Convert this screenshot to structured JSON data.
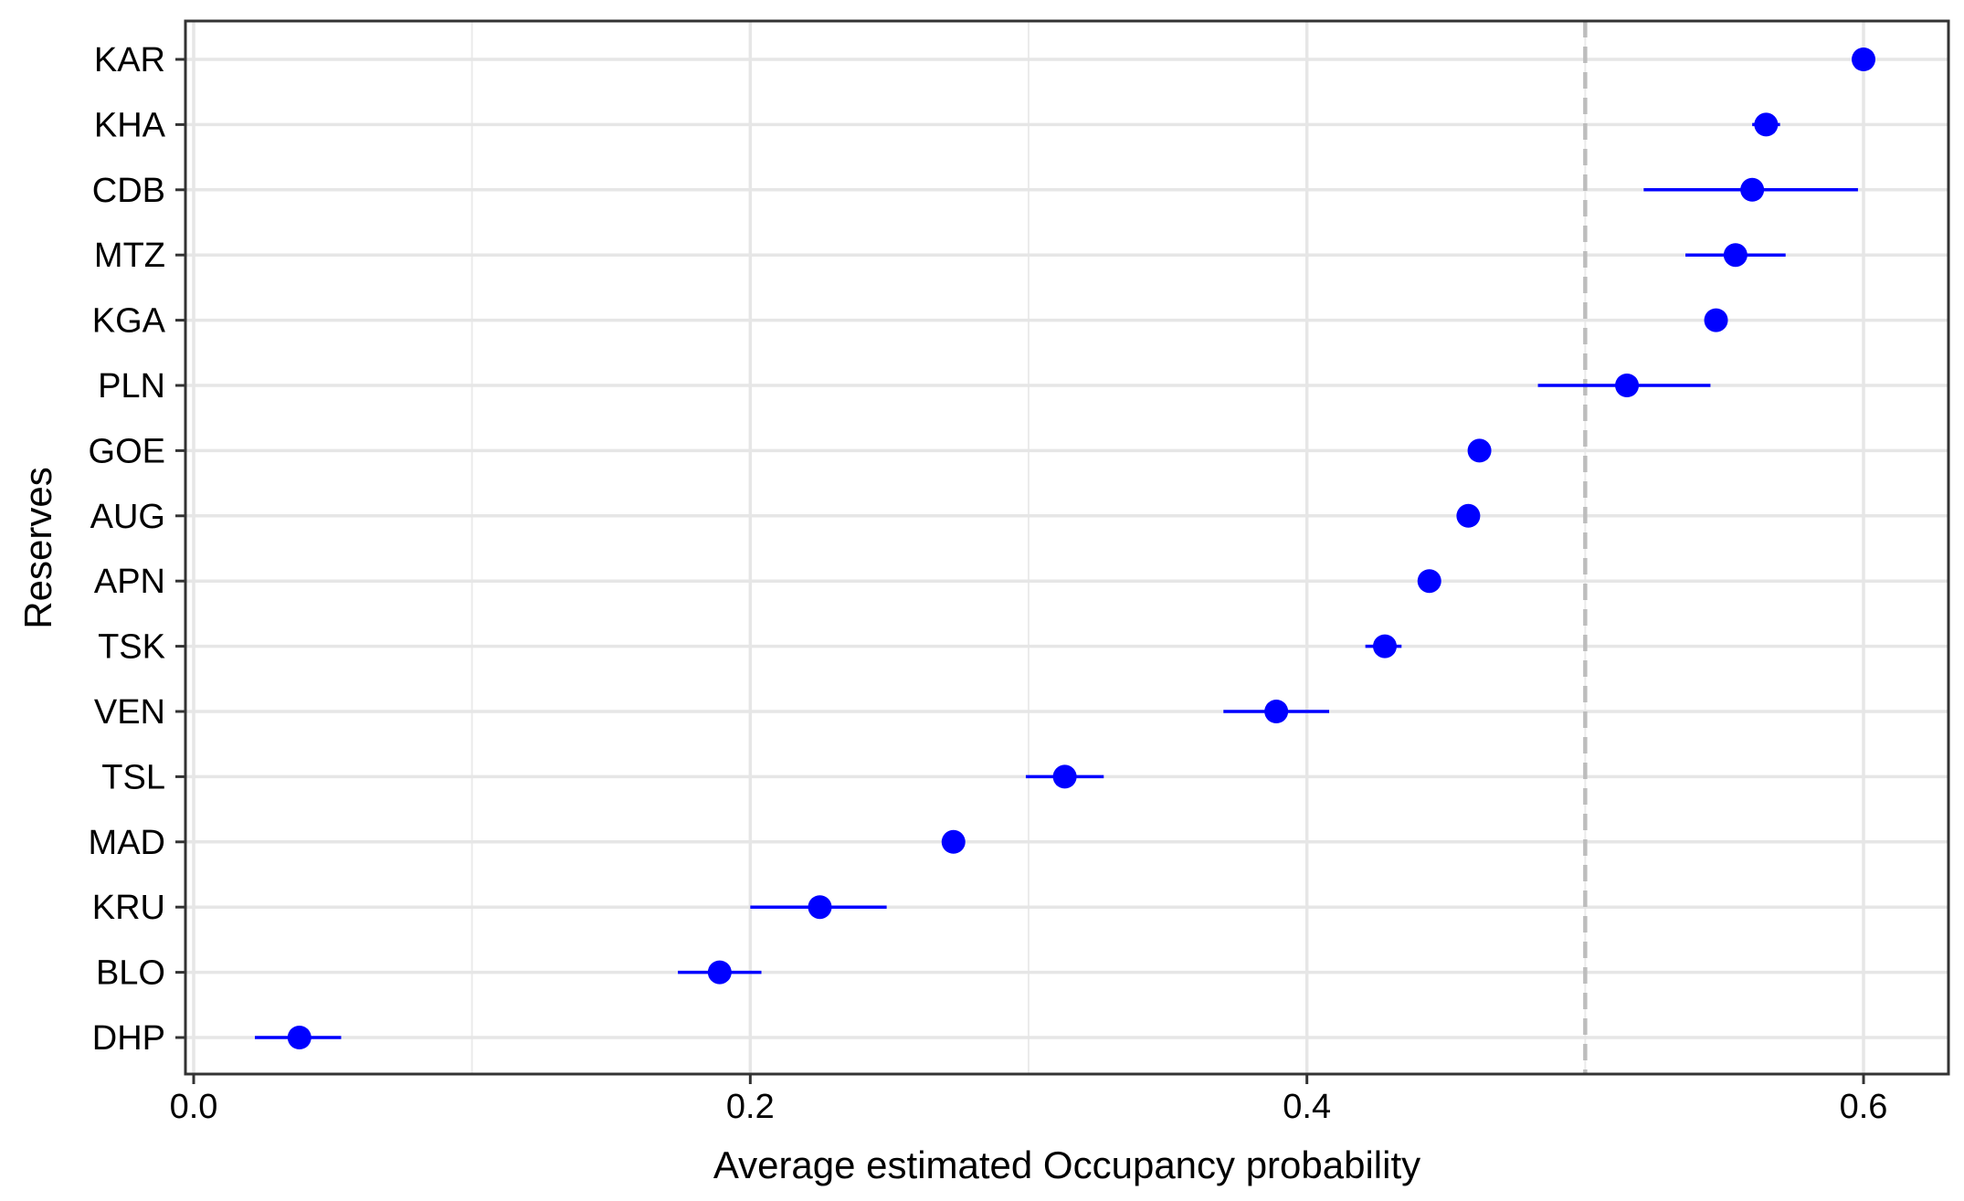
{
  "chart_data": {
    "type": "scatter",
    "xlabel": "Average estimated Occupancy probability",
    "ylabel": "Reserves",
    "xlim": [
      -0.003,
      0.631
    ],
    "xticks": [
      {
        "value": 0.0,
        "label": "0.0"
      },
      {
        "value": 0.2,
        "label": "0.2"
      },
      {
        "value": 0.4,
        "label": "0.4"
      },
      {
        "value": 0.6,
        "label": "0.6"
      }
    ],
    "x_minor_gridlines": [
      0.1,
      0.3,
      0.5
    ],
    "reference_line": {
      "x": 0.5,
      "style": "dashed",
      "color": "#bdbdbd"
    },
    "point_color": "#0000ff",
    "grid": true,
    "categories": [
      "KAR",
      "KHA",
      "CDB",
      "MTZ",
      "KGA",
      "PLN",
      "GOE",
      "AUG",
      "APN",
      "TSK",
      "VEN",
      "TSL",
      "MAD",
      "KRU",
      "BLO",
      "DHP"
    ],
    "points": [
      {
        "category": "KAR",
        "value": 0.6,
        "low": 0.6,
        "high": 0.6
      },
      {
        "category": "KHA",
        "value": 0.565,
        "low": 0.56,
        "high": 0.57
      },
      {
        "category": "CDB",
        "value": 0.56,
        "low": 0.521,
        "high": 0.598
      },
      {
        "category": "MTZ",
        "value": 0.554,
        "low": 0.536,
        "high": 0.572
      },
      {
        "category": "KGA",
        "value": 0.547,
        "low": 0.547,
        "high": 0.547
      },
      {
        "category": "PLN",
        "value": 0.515,
        "low": 0.483,
        "high": 0.545
      },
      {
        "category": "GOE",
        "value": 0.462,
        "low": 0.462,
        "high": 0.462
      },
      {
        "category": "AUG",
        "value": 0.458,
        "low": 0.458,
        "high": 0.458
      },
      {
        "category": "APN",
        "value": 0.444,
        "low": 0.444,
        "high": 0.444
      },
      {
        "category": "TSK",
        "value": 0.428,
        "low": 0.421,
        "high": 0.434
      },
      {
        "category": "VEN",
        "value": 0.389,
        "low": 0.37,
        "high": 0.408
      },
      {
        "category": "TSL",
        "value": 0.313,
        "low": 0.299,
        "high": 0.327
      },
      {
        "category": "MAD",
        "value": 0.273,
        "low": 0.273,
        "high": 0.273
      },
      {
        "category": "KRU",
        "value": 0.225,
        "low": 0.2,
        "high": 0.249
      },
      {
        "category": "BLO",
        "value": 0.189,
        "low": 0.174,
        "high": 0.204
      },
      {
        "category": "DHP",
        "value": 0.038,
        "low": 0.022,
        "high": 0.053
      }
    ]
  }
}
